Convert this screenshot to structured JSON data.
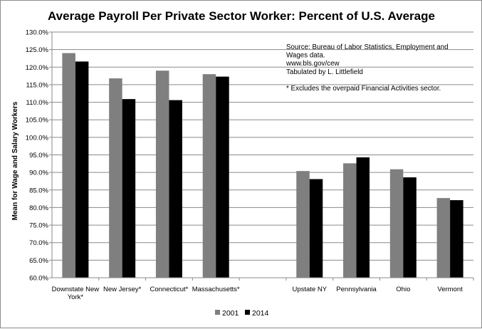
{
  "chart_data": {
    "type": "bar",
    "title": "Average Payroll Per Private Sector Worker:  Percent of U.S. Average",
    "ylabel": "Mean for Wage and Salary Workers",
    "xlabel": "",
    "ylim": [
      60,
      130
    ],
    "ytick_step": 5,
    "ytick_labels": [
      "60.0%",
      "65.0%",
      "70.0%",
      "75.0%",
      "80.0%",
      "85.0%",
      "90.0%",
      "95.0%",
      "100.0%",
      "105.0%",
      "110.0%",
      "115.0%",
      "120.0%",
      "125.0%",
      "130.0%"
    ],
    "grid": "horizontal",
    "categories": [
      [
        "Downstate New",
        "York*"
      ],
      [
        "New Jersey*"
      ],
      [
        "Connecticut*"
      ],
      [
        "Massachusetts*"
      ],
      [
        ""
      ],
      [
        "Upstate NY"
      ],
      [
        "Pennsylvania"
      ],
      [
        "Ohio"
      ],
      [
        "Vermont"
      ]
    ],
    "series": [
      {
        "name": "2001",
        "color": "#7f7f7f",
        "values": [
          124.0,
          116.8,
          119.0,
          118.0,
          null,
          90.4,
          92.6,
          90.9,
          82.7
        ]
      },
      {
        "name": "2014",
        "color": "#000000",
        "values": [
          121.6,
          110.9,
          110.6,
          117.3,
          null,
          88.1,
          94.3,
          88.6,
          82.1
        ]
      }
    ],
    "legend_position": "bottom-center",
    "annotation_lines": [
      "Source:  Bureau of Labor Statistics, Employment and",
      "Wages data.",
      " www.bls.gov/cew",
      "Tabulated by L. Littlefield",
      "",
      "*  Excludes the overpaid Financial Activities sector."
    ]
  }
}
